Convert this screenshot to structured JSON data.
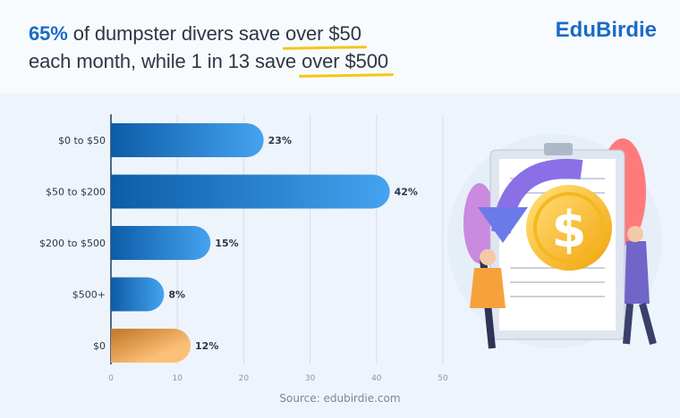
{
  "header": {
    "title_highlight": "65%",
    "title_part1": " of dumpster divers save ",
    "title_ul1": "over $50",
    "title_part2": "each month, while 1 in 13 save ",
    "title_ul2": "over $500",
    "logo": "EduBirdie"
  },
  "chart_data": {
    "type": "bar",
    "orientation": "horizontal",
    "categories": [
      "$0 to $50",
      "$50 to $200",
      "$200 to $500",
      "$500+",
      "$0"
    ],
    "values": [
      23,
      42,
      15,
      8,
      12
    ],
    "data_labels": [
      "23%",
      "42%",
      "15%",
      "8%",
      "12%"
    ],
    "xlim": [
      0,
      50
    ],
    "xticks": [
      "0",
      "10",
      "20",
      "30",
      "40",
      "50"
    ],
    "grid": true,
    "colors": {
      "blue_start": "#0d5ca6",
      "blue_end": "#45a3f0",
      "orange_start": "#c97f30",
      "orange_end": "#fbbf78"
    },
    "source": "Source: edubirdie.com"
  }
}
